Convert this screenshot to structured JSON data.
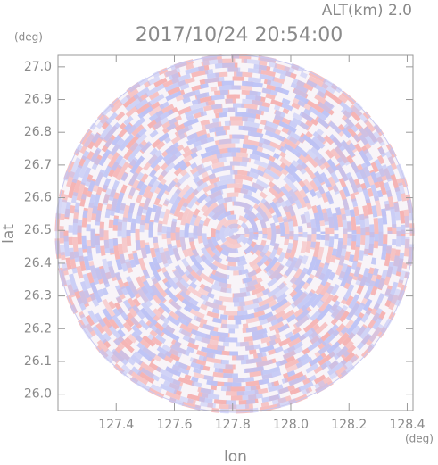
{
  "chart_data": {
    "type": "radar-ppi",
    "title": "2017/10/24 20:54:00",
    "altitude_label": "ALT(km) 2.0",
    "x_label": "lon",
    "y_label": "lat",
    "x_unit": "(deg)",
    "y_unit": "(deg)",
    "xlim": [
      127.2,
      128.42
    ],
    "ylim": [
      25.95,
      27.035
    ],
    "xticks": [
      127.4,
      127.6,
      127.8,
      {
        "value": 128,
        "label": "128.0"
      },
      128.2,
      128.4
    ],
    "yticks": [
      {
        "value": 26,
        "label": "26.0"
      },
      26.1,
      26.2,
      26.3,
      26.4,
      26.5,
      26.6,
      26.7,
      26.8,
      26.9,
      {
        "value": 27,
        "label": "27.0"
      }
    ],
    "colors": [
      "#f5b3b3",
      "#bcc2f5"
    ]
  }
}
